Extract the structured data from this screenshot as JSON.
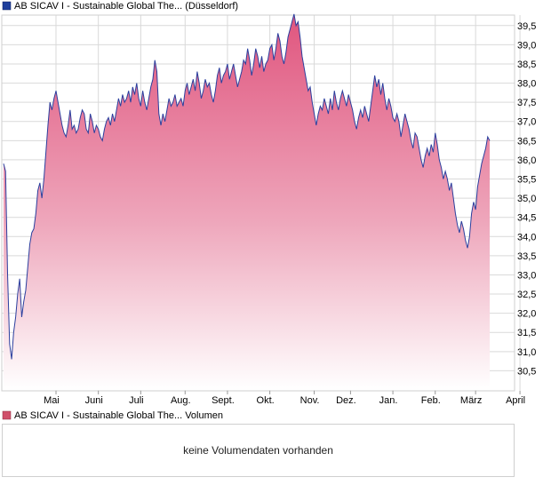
{
  "price_legend": {
    "label": "AB SICAV I - Sustainable Global The... (Düsseldorf)",
    "color": "#1f3f9c"
  },
  "volume_legend": {
    "label": "AB SICAV I - Sustainable Global The... Volumen",
    "color": "#d0506a"
  },
  "volume_panel": {
    "message": "keine Volumendaten vorhanden"
  },
  "colors": {
    "line": "#2b3f9e",
    "fill_top": "#e0557e",
    "fill_bottom": "#ffffff",
    "grid": "#d9d9d9"
  },
  "chart_data": {
    "type": "area",
    "ylim": [
      30.0,
      39.75
    ],
    "yticks": [
      30.5,
      31.0,
      31.5,
      32.0,
      32.5,
      33.0,
      33.5,
      34.0,
      34.5,
      35.0,
      35.5,
      36.0,
      36.5,
      37.0,
      37.5,
      38.0,
      38.5,
      39.0,
      39.5
    ],
    "ytick_labels": [
      "30,5",
      "31,0",
      "31,5",
      "32,0",
      "32,5",
      "33,0",
      "33,5",
      "34,0",
      "34,5",
      "35,0",
      "35,5",
      "36,0",
      "36,5",
      "37,0",
      "37,5",
      "38,0",
      "38,5",
      "39,0",
      "39,5"
    ],
    "xlim": [
      0,
      252
    ],
    "months": [
      {
        "label": "Mai",
        "x": 26
      },
      {
        "label": "Juni",
        "x": 47
      },
      {
        "label": "Juli",
        "x": 68
      },
      {
        "label": "Aug.",
        "x": 90
      },
      {
        "label": "Sept.",
        "x": 111
      },
      {
        "label": "Okt.",
        "x": 132
      },
      {
        "label": "Nov.",
        "x": 154
      },
      {
        "label": "Dez.",
        "x": 172
      },
      {
        "label": "Jan.",
        "x": 193
      },
      {
        "label": "Feb.",
        "x": 214
      },
      {
        "label": "März",
        "x": 234
      },
      {
        "label": "April",
        "x": 256
      }
    ],
    "series": [
      {
        "values": [
          [
            0,
            35.9
          ],
          [
            1,
            35.7
          ],
          [
            2,
            33.0
          ],
          [
            3,
            31.2
          ],
          [
            4,
            30.8
          ],
          [
            5,
            31.5
          ],
          [
            6,
            31.9
          ],
          [
            7,
            32.5
          ],
          [
            8,
            32.9
          ],
          [
            9,
            31.9
          ],
          [
            10,
            32.3
          ],
          [
            11,
            32.6
          ],
          [
            12,
            33.2
          ],
          [
            13,
            33.8
          ],
          [
            14,
            34.1
          ],
          [
            15,
            34.2
          ],
          [
            16,
            34.6
          ],
          [
            17,
            35.2
          ],
          [
            18,
            35.4
          ],
          [
            19,
            35.0
          ],
          [
            20,
            35.5
          ],
          [
            21,
            36.2
          ],
          [
            22,
            36.9
          ],
          [
            23,
            37.5
          ],
          [
            24,
            37.3
          ],
          [
            25,
            37.6
          ],
          [
            26,
            37.8
          ],
          [
            27,
            37.5
          ],
          [
            28,
            37.2
          ],
          [
            29,
            36.9
          ],
          [
            30,
            36.7
          ],
          [
            31,
            36.6
          ],
          [
            32,
            36.9
          ],
          [
            33,
            37.3
          ],
          [
            34,
            36.8
          ],
          [
            35,
            36.9
          ],
          [
            36,
            36.7
          ],
          [
            37,
            36.8
          ],
          [
            38,
            37.1
          ],
          [
            39,
            37.3
          ],
          [
            40,
            37.2
          ],
          [
            41,
            36.8
          ],
          [
            42,
            36.7
          ],
          [
            43,
            37.2
          ],
          [
            44,
            37.0
          ],
          [
            45,
            36.7
          ],
          [
            46,
            36.9
          ],
          [
            47,
            36.8
          ],
          [
            48,
            36.6
          ],
          [
            49,
            36.5
          ],
          [
            50,
            36.8
          ],
          [
            51,
            37.0
          ],
          [
            52,
            37.1
          ],
          [
            53,
            36.9
          ],
          [
            54,
            37.2
          ],
          [
            55,
            37.0
          ],
          [
            56,
            37.3
          ],
          [
            57,
            37.6
          ],
          [
            58,
            37.4
          ],
          [
            59,
            37.7
          ],
          [
            60,
            37.5
          ],
          [
            61,
            37.6
          ],
          [
            62,
            37.8
          ],
          [
            63,
            37.5
          ],
          [
            64,
            37.9
          ],
          [
            65,
            37.7
          ],
          [
            66,
            38.0
          ],
          [
            67,
            37.6
          ],
          [
            68,
            37.4
          ],
          [
            69,
            37.8
          ],
          [
            70,
            37.5
          ],
          [
            71,
            37.3
          ],
          [
            72,
            37.6
          ],
          [
            73,
            37.9
          ],
          [
            74,
            38.1
          ],
          [
            75,
            38.6
          ],
          [
            76,
            38.3
          ],
          [
            77,
            37.2
          ],
          [
            78,
            36.9
          ],
          [
            79,
            37.2
          ],
          [
            80,
            37.0
          ],
          [
            81,
            37.3
          ],
          [
            82,
            37.6
          ],
          [
            83,
            37.4
          ],
          [
            84,
            37.5
          ],
          [
            85,
            37.7
          ],
          [
            86,
            37.4
          ],
          [
            87,
            37.5
          ],
          [
            88,
            37.6
          ],
          [
            89,
            37.4
          ],
          [
            90,
            37.8
          ],
          [
            91,
            38.0
          ],
          [
            92,
            37.7
          ],
          [
            93,
            37.9
          ],
          [
            94,
            38.1
          ],
          [
            95,
            37.8
          ],
          [
            96,
            38.3
          ],
          [
            97,
            38.0
          ],
          [
            98,
            37.6
          ],
          [
            99,
            37.8
          ],
          [
            100,
            38.1
          ],
          [
            101,
            37.9
          ],
          [
            102,
            38.0
          ],
          [
            103,
            37.7
          ],
          [
            104,
            37.5
          ],
          [
            105,
            37.8
          ],
          [
            106,
            38.2
          ],
          [
            107,
            38.4
          ],
          [
            108,
            38.0
          ],
          [
            109,
            38.2
          ],
          [
            110,
            38.3
          ],
          [
            111,
            38.5
          ],
          [
            112,
            38.1
          ],
          [
            113,
            38.3
          ],
          [
            114,
            38.5
          ],
          [
            115,
            38.2
          ],
          [
            116,
            37.9
          ],
          [
            117,
            38.1
          ],
          [
            118,
            38.3
          ],
          [
            119,
            38.6
          ],
          [
            120,
            38.5
          ],
          [
            121,
            38.9
          ],
          [
            122,
            38.6
          ],
          [
            123,
            38.2
          ],
          [
            124,
            38.5
          ],
          [
            125,
            38.9
          ],
          [
            126,
            38.7
          ],
          [
            127,
            38.4
          ],
          [
            128,
            38.7
          ],
          [
            129,
            38.3
          ],
          [
            130,
            38.5
          ],
          [
            131,
            38.6
          ],
          [
            132,
            38.9
          ],
          [
            133,
            39.0
          ],
          [
            134,
            38.6
          ],
          [
            135,
            38.9
          ],
          [
            136,
            39.3
          ],
          [
            137,
            39.1
          ],
          [
            138,
            38.7
          ],
          [
            139,
            38.5
          ],
          [
            140,
            38.8
          ],
          [
            141,
            39.2
          ],
          [
            142,
            39.4
          ],
          [
            143,
            39.6
          ],
          [
            144,
            39.8
          ],
          [
            145,
            39.5
          ],
          [
            146,
            39.6
          ],
          [
            147,
            39.2
          ],
          [
            148,
            38.7
          ],
          [
            149,
            38.4
          ],
          [
            150,
            38.1
          ],
          [
            151,
            37.8
          ],
          [
            152,
            37.9
          ],
          [
            153,
            37.5
          ],
          [
            154,
            37.2
          ],
          [
            155,
            36.9
          ],
          [
            156,
            37.2
          ],
          [
            157,
            37.4
          ],
          [
            158,
            37.3
          ],
          [
            159,
            37.6
          ],
          [
            160,
            37.4
          ],
          [
            161,
            37.2
          ],
          [
            162,
            37.6
          ],
          [
            163,
            37.3
          ],
          [
            164,
            37.8
          ],
          [
            165,
            37.5
          ],
          [
            166,
            37.3
          ],
          [
            167,
            37.6
          ],
          [
            168,
            37.8
          ],
          [
            169,
            37.6
          ],
          [
            170,
            37.4
          ],
          [
            171,
            37.7
          ],
          [
            172,
            37.5
          ],
          [
            173,
            37.3
          ],
          [
            174,
            37.0
          ],
          [
            175,
            36.8
          ],
          [
            176,
            37.1
          ],
          [
            177,
            37.3
          ],
          [
            178,
            37.1
          ],
          [
            179,
            37.4
          ],
          [
            180,
            37.2
          ],
          [
            181,
            37.0
          ],
          [
            182,
            37.4
          ],
          [
            183,
            37.8
          ],
          [
            184,
            38.2
          ],
          [
            185,
            37.9
          ],
          [
            186,
            38.1
          ],
          [
            187,
            37.7
          ],
          [
            188,
            38.0
          ],
          [
            189,
            37.6
          ],
          [
            190,
            37.3
          ],
          [
            191,
            37.6
          ],
          [
            192,
            37.4
          ],
          [
            193,
            37.1
          ],
          [
            194,
            37.0
          ],
          [
            195,
            37.2
          ],
          [
            196,
            37.0
          ],
          [
            197,
            36.6
          ],
          [
            198,
            36.9
          ],
          [
            199,
            37.2
          ],
          [
            200,
            37.0
          ],
          [
            201,
            36.8
          ],
          [
            202,
            36.5
          ],
          [
            203,
            36.3
          ],
          [
            204,
            36.7
          ],
          [
            205,
            36.6
          ],
          [
            206,
            36.3
          ],
          [
            207,
            36.0
          ],
          [
            208,
            35.8
          ],
          [
            209,
            36.1
          ],
          [
            210,
            36.3
          ],
          [
            211,
            36.1
          ],
          [
            212,
            36.4
          ],
          [
            213,
            36.2
          ],
          [
            214,
            36.7
          ],
          [
            215,
            36.4
          ],
          [
            216,
            36.0
          ],
          [
            217,
            35.8
          ],
          [
            218,
            35.5
          ],
          [
            219,
            35.7
          ],
          [
            220,
            35.5
          ],
          [
            221,
            35.2
          ],
          [
            222,
            35.4
          ],
          [
            223,
            35.0
          ],
          [
            224,
            34.6
          ],
          [
            225,
            34.3
          ],
          [
            226,
            34.1
          ],
          [
            227,
            34.4
          ],
          [
            228,
            34.2
          ],
          [
            229,
            33.9
          ],
          [
            230,
            33.7
          ],
          [
            231,
            34.0
          ],
          [
            232,
            34.6
          ],
          [
            233,
            34.9
          ],
          [
            234,
            34.7
          ],
          [
            235,
            35.3
          ],
          [
            236,
            35.6
          ],
          [
            237,
            35.9
          ],
          [
            238,
            36.1
          ],
          [
            239,
            36.3
          ],
          [
            240,
            36.6
          ],
          [
            241,
            36.5
          ]
        ]
      }
    ]
  }
}
